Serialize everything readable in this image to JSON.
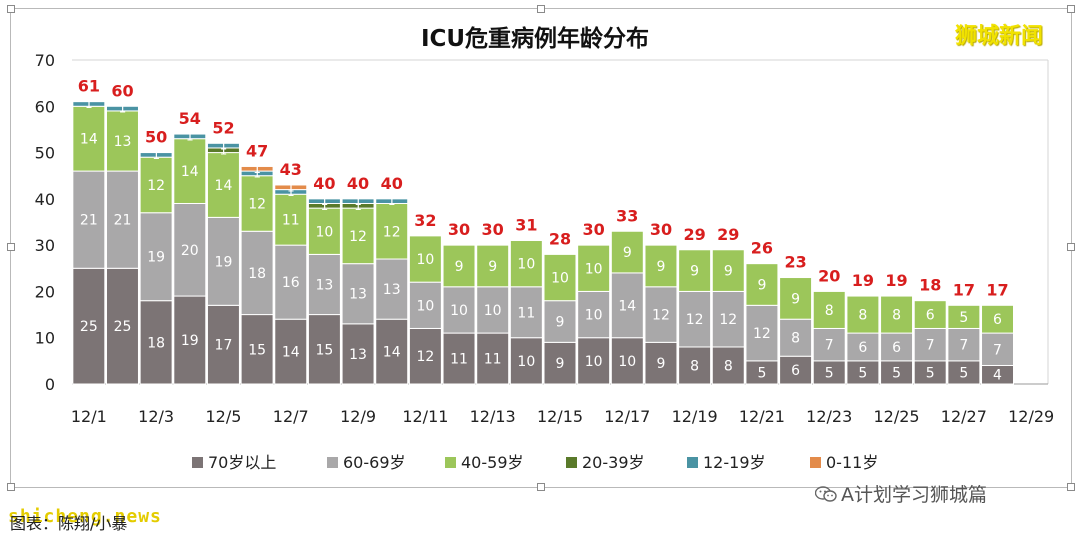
{
  "watermark": "狮城新闻",
  "source_site": "shicheng.news",
  "caption": "图表：陈翔/小暴",
  "wechat_account": "A计划学习狮城篇",
  "colors": {
    "70岁以上": "#7c7475",
    "60-69岁": "#a9a8a9",
    "40-59岁": "#9cc65a",
    "20-39岁": "#5a7a2a",
    "12-19岁": "#4a93a3",
    "0-11岁": "#e38b4a",
    "total_label": "#d81e1e"
  },
  "chart_data": {
    "type": "bar",
    "stacked": true,
    "title": "ICU危重病例年龄分布",
    "ylim": [
      0,
      70
    ],
    "yticks": [
      0,
      10,
      20,
      30,
      40,
      50,
      60,
      70
    ],
    "grid": false,
    "legend_position": "bottom",
    "categories": [
      "12/1",
      "12/2",
      "12/3",
      "12/4",
      "12/5",
      "12/6",
      "12/7",
      "12/8",
      "12/9",
      "12/10",
      "12/11",
      "12/12",
      "12/13",
      "12/14",
      "12/15",
      "12/16",
      "12/17",
      "12/18",
      "12/19",
      "12/20",
      "12/21",
      "12/22",
      "12/23",
      "12/24",
      "12/25",
      "12/26",
      "12/27",
      "12/28",
      "12/29"
    ],
    "x_tick_labels": [
      "12/1",
      "",
      "12/3",
      "",
      "12/5",
      "",
      "12/7",
      "",
      "12/9",
      "",
      "12/11",
      "",
      "12/13",
      "",
      "12/15",
      "",
      "12/17",
      "",
      "12/19",
      "",
      "12/21",
      "",
      "12/23",
      "",
      "12/25",
      "",
      "12/27",
      "",
      "12/29"
    ],
    "series": [
      {
        "name": "70岁以上",
        "values": [
          25,
          25,
          18,
          19,
          17,
          15,
          14,
          15,
          13,
          14,
          12,
          11,
          11,
          10,
          9,
          10,
          10,
          9,
          8,
          8,
          5,
          6,
          5,
          5,
          5,
          5,
          5,
          4,
          null
        ]
      },
      {
        "name": "60-69岁",
        "values": [
          21,
          21,
          19,
          20,
          19,
          18,
          16,
          13,
          13,
          13,
          10,
          10,
          10,
          11,
          9,
          10,
          14,
          12,
          12,
          12,
          12,
          8,
          7,
          6,
          6,
          7,
          7,
          7,
          null
        ]
      },
      {
        "name": "40-59岁",
        "values": [
          14,
          13,
          12,
          14,
          14,
          12,
          11,
          10,
          12,
          12,
          10,
          9,
          9,
          10,
          10,
          10,
          9,
          9,
          9,
          9,
          9,
          9,
          8,
          8,
          8,
          6,
          5,
          6,
          null
        ]
      },
      {
        "name": "20-39岁",
        "values": [
          0,
          0,
          0,
          0,
          1,
          0,
          0,
          1,
          1,
          0,
          0,
          0,
          0,
          0,
          0,
          0,
          0,
          0,
          0,
          0,
          0,
          0,
          0,
          0,
          0,
          0,
          0,
          0,
          null
        ]
      },
      {
        "name": "12-19岁",
        "values": [
          1,
          1,
          1,
          1,
          1,
          1,
          1,
          1,
          1,
          1,
          0,
          0,
          0,
          0,
          0,
          0,
          0,
          0,
          0,
          0,
          0,
          0,
          0,
          0,
          0,
          0,
          0,
          0,
          null
        ]
      },
      {
        "name": "0-11岁",
        "values": [
          0,
          0,
          0,
          0,
          0,
          1,
          1,
          0,
          0,
          0,
          0,
          0,
          0,
          0,
          0,
          0,
          0,
          0,
          0,
          0,
          0,
          0,
          0,
          0,
          0,
          0,
          0,
          0,
          null
        ]
      }
    ],
    "totals": [
      61,
      60,
      50,
      54,
      52,
      47,
      43,
      40,
      40,
      40,
      32,
      30,
      30,
      31,
      28,
      30,
      33,
      30,
      29,
      29,
      26,
      23,
      20,
      19,
      19,
      18,
      17,
      17,
      null
    ]
  }
}
